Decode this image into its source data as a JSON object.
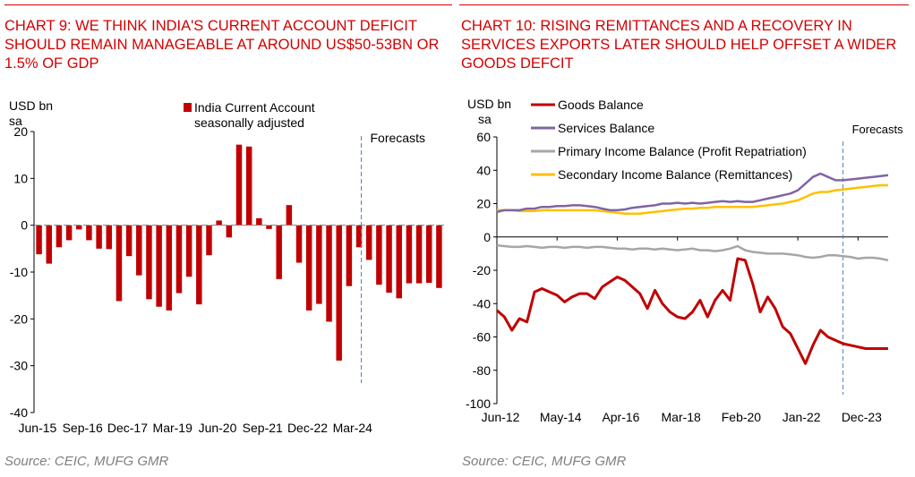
{
  "colors": {
    "red": "#c00000",
    "title_red": "#d40000",
    "purple": "#8064a2",
    "grey": "#a6a6a6",
    "yellow": "#ffc000",
    "forecast_line": "#4f81bd"
  },
  "chart_data": [
    {
      "type": "bar",
      "title": "CHART 9: WE THINK INDIA'S CURRENT ACCOUNT DEFICIT SHOULD REMAIN MANAGEABLE AT AROUND US$50-53BN OR 1.5% OF GDP",
      "ylabel": "USD bn sa",
      "legend": {
        "label": "India Current Account seasonally adjusted",
        "position": "top"
      },
      "ylim": [
        -40,
        20
      ],
      "yticks": [
        20,
        10,
        0,
        -10,
        -20,
        -30,
        -40
      ],
      "xtick_labels": [
        "Jun-15",
        "Sep-16",
        "Dec-17",
        "Mar-19",
        "Jun-20",
        "Sep-21",
        "Dec-22",
        "Mar-24"
      ],
      "annotation": "Forecasts",
      "series": [
        {
          "values": [
            -6.2,
            -8.2,
            -4.7,
            -3.2,
            -0.9,
            -3.2,
            -5.0,
            -5.1,
            -16.2,
            -6.6,
            -10.7,
            -15.8,
            -17.4,
            -18.2,
            -14.5,
            -11.0,
            -16.9,
            -6.4,
            1.0,
            -2.6,
            17.2,
            16.8,
            1.5,
            -0.8,
            -11.5,
            4.3,
            -8.0,
            -18.2,
            -16.8,
            -20.6,
            -28.9,
            -13.0,
            -4.7,
            -7.4,
            -12.7,
            -14.4,
            -15.6,
            -12.4,
            -12.4,
            -12.3,
            -13.4
          ]
        }
      ],
      "forecast_from_index": 32,
      "source": "Source: CEIC, MUFG GMR"
    },
    {
      "type": "line",
      "title": "CHART 10: RISING REMITTANCES AND A RECOVERY IN SERVICES EXPORTS LATER SHOULD HELP OFFSET A WIDER GOODS DEFCIT",
      "ylabel": "USD bn sa",
      "ylim": [
        -100,
        60
      ],
      "yticks": [
        60,
        40,
        20,
        0,
        -20,
        -40,
        -60,
        -80,
        -100
      ],
      "xtick_labels": [
        "Jun-12",
        "May-14",
        "Apr-16",
        "Mar-18",
        "Feb-20",
        "Jan-22",
        "Dec-23"
      ],
      "annotation": "Forecasts",
      "forecast_from_index": 46,
      "series": [
        {
          "name": "Goods Balance",
          "values": [
            -44,
            -48,
            -56,
            -49,
            -51,
            -33,
            -31,
            -33,
            -35,
            -39,
            -36,
            -34,
            -34,
            -37,
            -30,
            -27,
            -24,
            -26,
            -30,
            -34,
            -43,
            -32,
            -40,
            -45,
            -48,
            -49,
            -45,
            -38,
            -48,
            -38,
            -32,
            -38,
            -13,
            -14,
            -28,
            -45,
            -36,
            -43,
            -54,
            -58,
            -67,
            -76,
            -65,
            -56,
            -60,
            -62,
            -64,
            -65,
            -66,
            -67,
            -67,
            -67,
            -67
          ]
        },
        {
          "name": "Services Balance",
          "values": [
            15,
            16,
            16,
            16,
            17,
            17,
            18,
            18,
            18.5,
            18.5,
            19,
            19,
            18.5,
            18,
            17,
            16,
            16,
            16.5,
            17.5,
            18,
            18.5,
            19,
            20,
            20,
            20.5,
            20,
            20.5,
            20,
            20.5,
            21,
            21.5,
            21,
            21.5,
            21,
            21,
            22,
            23,
            24,
            25,
            26,
            28,
            32,
            36,
            38,
            36,
            34,
            34,
            34.5,
            35,
            35.5,
            36,
            36.5,
            37
          ]
        },
        {
          "name": "Primary Income Balance (Profit Repatriation)",
          "values": [
            -5,
            -5.5,
            -6,
            -6,
            -5.5,
            -6,
            -6.5,
            -6,
            -6,
            -6.5,
            -6,
            -6,
            -6.5,
            -6,
            -6,
            -6.5,
            -7,
            -7,
            -7.5,
            -7,
            -7,
            -7.5,
            -7,
            -7.5,
            -8,
            -7.5,
            -7,
            -8,
            -8,
            -8.5,
            -8,
            -7,
            -5.5,
            -8,
            -9,
            -9.5,
            -10,
            -10,
            -10,
            -10.5,
            -11,
            -12,
            -12.5,
            -12,
            -11,
            -11,
            -11.5,
            -12,
            -13,
            -12.5,
            -12.5,
            -13,
            -14
          ]
        },
        {
          "name": "Secondary Income Balance (Remittances)",
          "values": [
            16,
            16,
            16,
            15.5,
            15.5,
            15.5,
            16,
            16,
            16,
            16,
            16,
            16,
            16,
            16,
            15.5,
            15,
            14.5,
            14,
            14,
            14,
            14.5,
            15,
            15.5,
            16,
            16.5,
            17,
            17,
            17.5,
            17.5,
            18,
            18,
            18,
            18,
            18,
            18,
            18.5,
            19,
            19.5,
            20,
            21,
            22,
            24,
            26,
            27,
            27,
            28,
            28.5,
            29,
            29.5,
            30,
            30.5,
            31,
            31
          ]
        }
      ],
      "source": "Source: CEIC, MUFG GMR"
    }
  ]
}
